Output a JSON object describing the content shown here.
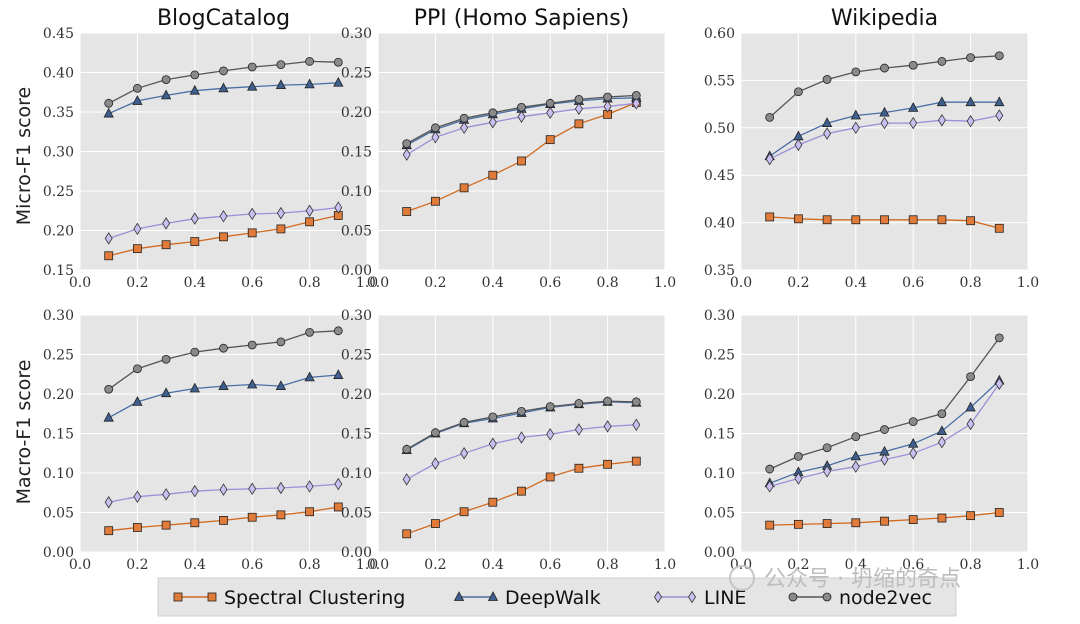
{
  "chart_data": {
    "type": "line",
    "x": [
      0.1,
      0.2,
      0.3,
      0.4,
      0.5,
      0.6,
      0.7,
      0.8,
      0.9
    ],
    "xticks": [
      "0.0",
      "0.2",
      "0.4",
      "0.6",
      "0.8",
      "1.0"
    ],
    "xlim": [
      0.0,
      1.0
    ],
    "grid": true,
    "legend_placement": "bottom-center",
    "colors": {
      "Spectral Clustering": "#d2691e",
      "DeepWalk": "#4a6fa5",
      "LINE": "#9c8fd8",
      "node2vec": "#555555"
    },
    "series_names": [
      "Spectral Clustering",
      "DeepWalk",
      "LINE",
      "node2vec"
    ],
    "row_labels": [
      "Micro-F1 score",
      "Macro-F1 score"
    ],
    "panels": [
      {
        "title": "BlogCatalog",
        "row": 0,
        "col": 0,
        "ylim": [
          0.15,
          0.45
        ],
        "yticks": [
          "0.15",
          "0.20",
          "0.25",
          "0.30",
          "0.35",
          "0.40",
          "0.45"
        ],
        "series": [
          {
            "name": "Spectral Clustering",
            "values": [
              0.168,
              0.177,
              0.182,
              0.186,
              0.192,
              0.197,
              0.202,
              0.211,
              0.219
            ]
          },
          {
            "name": "DeepWalk",
            "values": [
              0.348,
              0.364,
              0.371,
              0.377,
              0.38,
              0.382,
              0.384,
              0.385,
              0.387
            ]
          },
          {
            "name": "LINE",
            "values": [
              0.19,
              0.202,
              0.209,
              0.215,
              0.218,
              0.221,
              0.222,
              0.225,
              0.229
            ]
          },
          {
            "name": "node2vec",
            "values": [
              0.361,
              0.38,
              0.391,
              0.397,
              0.402,
              0.407,
              0.41,
              0.414,
              0.413
            ]
          }
        ]
      },
      {
        "title": "PPI (Homo Sapiens)",
        "row": 0,
        "col": 1,
        "ylim": [
          0.0,
          0.3
        ],
        "yticks": [
          "0.00",
          "0.05",
          "0.10",
          "0.15",
          "0.20",
          "0.25",
          "0.30"
        ],
        "series": [
          {
            "name": "Spectral Clustering",
            "values": [
              0.074,
              0.087,
              0.104,
              0.12,
              0.138,
              0.165,
              0.185,
              0.197,
              0.212
            ]
          },
          {
            "name": "DeepWalk",
            "values": [
              0.158,
              0.178,
              0.19,
              0.197,
              0.204,
              0.21,
              0.214,
              0.217,
              0.218
            ]
          },
          {
            "name": "LINE",
            "values": [
              0.146,
              0.168,
              0.18,
              0.187,
              0.194,
              0.199,
              0.204,
              0.207,
              0.211
            ]
          },
          {
            "name": "node2vec",
            "values": [
              0.16,
              0.18,
              0.192,
              0.199,
              0.206,
              0.211,
              0.216,
              0.219,
              0.221
            ]
          }
        ]
      },
      {
        "title": "Wikipedia",
        "row": 0,
        "col": 2,
        "ylim": [
          0.35,
          0.6
        ],
        "yticks": [
          "0.35",
          "0.40",
          "0.45",
          "0.50",
          "0.55",
          "0.60"
        ],
        "series": [
          {
            "name": "Spectral Clustering",
            "values": [
              0.406,
              0.404,
              0.403,
              0.403,
              0.403,
              0.403,
              0.403,
              0.402,
              0.394
            ]
          },
          {
            "name": "DeepWalk",
            "values": [
              0.47,
              0.491,
              0.505,
              0.513,
              0.516,
              0.521,
              0.527,
              0.527,
              0.527
            ]
          },
          {
            "name": "LINE",
            "values": [
              0.467,
              0.482,
              0.494,
              0.5,
              0.505,
              0.505,
              0.508,
              0.507,
              0.513
            ]
          },
          {
            "name": "node2vec",
            "values": [
              0.511,
              0.538,
              0.551,
              0.559,
              0.563,
              0.566,
              0.57,
              0.574,
              0.576
            ]
          }
        ]
      },
      {
        "title": "",
        "row": 1,
        "col": 0,
        "ylim": [
          0.0,
          0.3
        ],
        "yticks": [
          "0.00",
          "0.05",
          "0.10",
          "0.15",
          "0.20",
          "0.25",
          "0.30"
        ],
        "series": [
          {
            "name": "Spectral Clustering",
            "values": [
              0.027,
              0.031,
              0.034,
              0.037,
              0.04,
              0.044,
              0.047,
              0.051,
              0.057
            ]
          },
          {
            "name": "DeepWalk",
            "values": [
              0.17,
              0.19,
              0.201,
              0.207,
              0.21,
              0.212,
              0.21,
              0.221,
              0.224
            ]
          },
          {
            "name": "LINE",
            "values": [
              0.063,
              0.07,
              0.073,
              0.077,
              0.079,
              0.08,
              0.081,
              0.083,
              0.086
            ]
          },
          {
            "name": "node2vec",
            "values": [
              0.206,
              0.232,
              0.244,
              0.253,
              0.258,
              0.262,
              0.266,
              0.278,
              0.28
            ]
          }
        ]
      },
      {
        "title": "",
        "row": 1,
        "col": 1,
        "ylim": [
          0.0,
          0.3
        ],
        "yticks": [
          "0.00",
          "0.05",
          "0.10",
          "0.15",
          "0.20",
          "0.25",
          "0.30"
        ],
        "series": [
          {
            "name": "Spectral Clustering",
            "values": [
              0.023,
              0.036,
              0.051,
              0.063,
              0.077,
              0.095,
              0.106,
              0.111,
              0.115
            ]
          },
          {
            "name": "DeepWalk",
            "values": [
              0.129,
              0.15,
              0.163,
              0.169,
              0.176,
              0.183,
              0.187,
              0.19,
              0.189
            ]
          },
          {
            "name": "LINE",
            "values": [
              0.092,
              0.112,
              0.125,
              0.137,
              0.145,
              0.149,
              0.155,
              0.159,
              0.161
            ]
          },
          {
            "name": "node2vec",
            "values": [
              0.13,
              0.151,
              0.164,
              0.171,
              0.178,
              0.184,
              0.188,
              0.191,
              0.19
            ]
          }
        ]
      },
      {
        "title": "",
        "row": 1,
        "col": 2,
        "ylim": [
          0.0,
          0.3
        ],
        "yticks": [
          "0.00",
          "0.05",
          "0.10",
          "0.15",
          "0.20",
          "0.25",
          "0.30"
        ],
        "series": [
          {
            "name": "Spectral Clustering",
            "values": [
              0.034,
              0.035,
              0.036,
              0.037,
              0.039,
              0.041,
              0.043,
              0.046,
              0.05
            ]
          },
          {
            "name": "DeepWalk",
            "values": [
              0.087,
              0.101,
              0.109,
              0.121,
              0.127,
              0.137,
              0.153,
              0.183,
              0.217
            ]
          },
          {
            "name": "LINE",
            "values": [
              0.083,
              0.093,
              0.102,
              0.108,
              0.117,
              0.125,
              0.139,
              0.162,
              0.213
            ]
          },
          {
            "name": "node2vec",
            "values": [
              0.105,
              0.121,
              0.132,
              0.146,
              0.155,
              0.165,
              0.175,
              0.222,
              0.271
            ]
          }
        ]
      }
    ]
  },
  "legend": {
    "items": [
      {
        "label": "Spectral Clustering",
        "marker": "square"
      },
      {
        "label": "DeepWalk",
        "marker": "triangle"
      },
      {
        "label": "LINE",
        "marker": "diamond"
      },
      {
        "label": "node2vec",
        "marker": "circle"
      }
    ]
  },
  "watermark": "公众号 · 坍缩的奇点"
}
